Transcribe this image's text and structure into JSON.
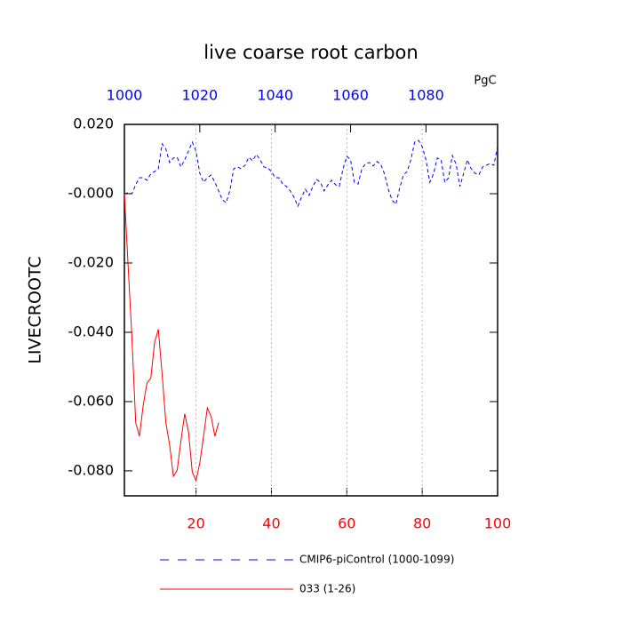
{
  "chart_data": {
    "type": "line",
    "title": "live coarse root carbon",
    "units": "PgC",
    "ylabel": "LIVECROOTC",
    "xlim": [
      1,
      100
    ],
    "xticks": [
      20,
      40,
      60,
      80,
      100
    ],
    "xtick_color": "#ff0000",
    "x2lim": [
      1000,
      1099
    ],
    "x2ticks": [
      1000,
      1020,
      1040,
      1060,
      1080
    ],
    "x2tick_color": "#0000ff",
    "ylim": [
      -0.0872,
      0.02
    ],
    "yticks": [
      {
        "value": 0.02,
        "label": "0.020"
      },
      {
        "value": 0,
        "label": "-0.000"
      },
      {
        "value": -0.02,
        "label": "-0.020"
      },
      {
        "value": -0.04,
        "label": "-0.040"
      },
      {
        "value": -0.06,
        "label": "-0.060"
      },
      {
        "value": -0.08,
        "label": "-0.080"
      }
    ],
    "grid": true,
    "series": [
      {
        "name": "CMIP6-piControl (1000-1099)",
        "color": "#0000ff",
        "dashed": true,
        "x": [
          1,
          2,
          3,
          4,
          5,
          6,
          7,
          8,
          9,
          10,
          11,
          12,
          13,
          14,
          15,
          16,
          17,
          18,
          19,
          20,
          21,
          22,
          23,
          24,
          25,
          26,
          27,
          28,
          29,
          30,
          31,
          32,
          33,
          34,
          35,
          36,
          37,
          38,
          39,
          40,
          41,
          42,
          43,
          44,
          45,
          46,
          47,
          48,
          49,
          50,
          51,
          52,
          53,
          54,
          55,
          56,
          57,
          58,
          59,
          60,
          61,
          62,
          63,
          64,
          65,
          66,
          67,
          68,
          69,
          70,
          71,
          72,
          73,
          74,
          75,
          76,
          77,
          78,
          79,
          80,
          81,
          82,
          83,
          84,
          85,
          86,
          87,
          88,
          89,
          90,
          91,
          92,
          93,
          94,
          95,
          96,
          97,
          98,
          99,
          100
        ],
        "values": [
          0.0,
          0.0003,
          0.0,
          0.0026,
          0.0046,
          0.0046,
          0.0039,
          0.0057,
          0.0064,
          0.0072,
          0.0144,
          0.0129,
          0.009,
          0.0103,
          0.0105,
          0.0077,
          0.0098,
          0.0123,
          0.0149,
          0.0123,
          0.0059,
          0.0033,
          0.0046,
          0.0054,
          0.0033,
          0.0008,
          -0.0018,
          -0.0026,
          0.001,
          0.0072,
          0.0077,
          0.0072,
          0.0082,
          0.0105,
          0.0095,
          0.0113,
          0.0098,
          0.0077,
          0.0075,
          0.0064,
          0.0046,
          0.0046,
          0.0028,
          0.0021,
          0.0008,
          -0.001,
          -0.0036,
          -0.001,
          0.0013,
          -0.0005,
          0.0021,
          0.0041,
          0.0033,
          0.0008,
          0.0026,
          0.0039,
          0.0026,
          0.0021,
          0.0072,
          0.0108,
          0.0098,
          0.0033,
          0.0028,
          0.0072,
          0.0087,
          0.009,
          0.008,
          0.0093,
          0.0085,
          0.0057,
          0.0013,
          -0.0018,
          -0.0031,
          0.0015,
          0.0054,
          0.0064,
          0.0098,
          0.0149,
          0.0154,
          0.0136,
          0.0098,
          0.0033,
          0.0057,
          0.0103,
          0.0098,
          0.0033,
          0.0046,
          0.011,
          0.0085,
          0.0021,
          0.0059,
          0.0098,
          0.0072,
          0.0059,
          0.0054,
          0.0077,
          0.0082,
          0.0087,
          0.0082,
          0.0136
        ]
      },
      {
        "name": "033 (1-26)",
        "color": "#ff0000",
        "dashed": false,
        "x": [
          1,
          2,
          3,
          4,
          5,
          6,
          7,
          8,
          9,
          10,
          11,
          12,
          13,
          14,
          15,
          16,
          17,
          18,
          19,
          20,
          21,
          22,
          23,
          24,
          25,
          26
        ],
        "values": [
          0.0,
          -0.0211,
          -0.0417,
          -0.0661,
          -0.07,
          -0.061,
          -0.0546,
          -0.0533,
          -0.043,
          -0.0391,
          -0.052,
          -0.0661,
          -0.0725,
          -0.0816,
          -0.0798,
          -0.0713,
          -0.0635,
          -0.0687,
          -0.0803,
          -0.0828,
          -0.0777,
          -0.07,
          -0.0618,
          -0.0643,
          -0.07,
          -0.0661
        ]
      }
    ]
  }
}
